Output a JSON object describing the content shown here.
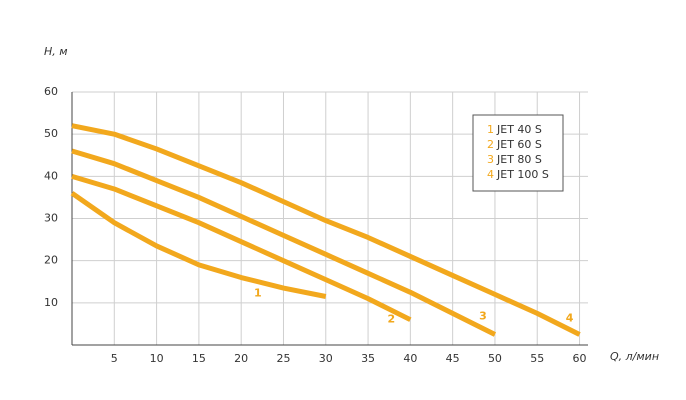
{
  "chart_data": {
    "type": "line",
    "x_label": "Q, л/мин",
    "y_label": "H, м",
    "xlim": [
      0,
      61
    ],
    "ylim": [
      0,
      60
    ],
    "xticks": [
      5,
      10,
      15,
      20,
      25,
      30,
      35,
      40,
      45,
      50,
      55,
      60
    ],
    "yticks": [
      10,
      20,
      30,
      40,
      50,
      60
    ],
    "grid": true,
    "legend": "upper right",
    "series": [
      {
        "name": "JET 40 S",
        "label": "1",
        "color": "#f2a81d",
        "x": [
          0,
          5,
          10,
          15,
          20,
          25,
          30
        ],
        "values": [
          36,
          29,
          23.5,
          19,
          16,
          13.5,
          11.5
        ]
      },
      {
        "name": "JET 60 S",
        "label": "2",
        "color": "#f2a81d",
        "x": [
          0,
          5,
          10,
          15,
          20,
          25,
          30,
          35,
          40
        ],
        "values": [
          40,
          37,
          33,
          29,
          24.5,
          20,
          15.5,
          11,
          6
        ]
      },
      {
        "name": "JET 80 S",
        "label": "3",
        "color": "#f2a81d",
        "x": [
          0,
          5,
          10,
          15,
          20,
          25,
          30,
          35,
          40,
          45,
          50
        ],
        "values": [
          46,
          43,
          39,
          35,
          30.5,
          26,
          21.5,
          17,
          12.5,
          7.5,
          2.5
        ]
      },
      {
        "name": "JET 100 S",
        "label": "4",
        "color": "#f2a81d",
        "x": [
          0,
          5,
          10,
          15,
          20,
          25,
          30,
          35,
          40,
          45,
          50,
          55,
          60
        ],
        "values": [
          52,
          50,
          46.5,
          42.5,
          38.5,
          34,
          29.5,
          25.5,
          21,
          16.5,
          12,
          7.5,
          2.5
        ]
      }
    ]
  }
}
